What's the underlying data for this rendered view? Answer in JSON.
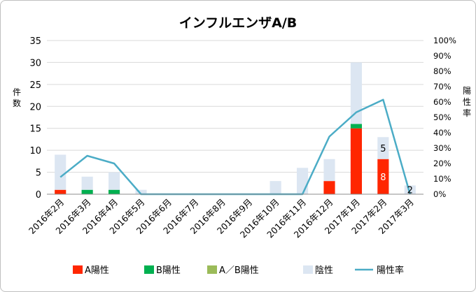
{
  "chart_data": {
    "type": "bar",
    "title": "インフルエンザA/B",
    "ylabel": "件数",
    "y2label": "陽性率",
    "ylim": [
      0,
      35
    ],
    "y2lim": [
      0,
      100
    ],
    "yticks": [
      "0",
      "5",
      "10",
      "15",
      "20",
      "25",
      "30",
      "35"
    ],
    "y2ticks": [
      "0%",
      "10%",
      "20%",
      "30%",
      "40%",
      "50%",
      "60%",
      "70%",
      "80%",
      "90%",
      "100%"
    ],
    "categories": [
      "2016年2月",
      "2016年3月",
      "2016年4月",
      "2016年5月",
      "2016年6月",
      "2016年7月",
      "2016年8月",
      "2016年9月",
      "2016年10月",
      "2016年11月",
      "2016年12月",
      "2017年1月",
      "2017年2月",
      "2017年3月"
    ],
    "grid": true,
    "legend_position": "bottom",
    "series": [
      {
        "name": "A陽性",
        "kind": "bar",
        "color": "#ff2600",
        "values": [
          1,
          0,
          0,
          0,
          0,
          0,
          0,
          0,
          0,
          0,
          3,
          15,
          8,
          0
        ]
      },
      {
        "name": "B陽性",
        "kind": "bar",
        "color": "#00b050",
        "values": [
          0,
          1,
          1,
          0,
          0,
          0,
          0,
          0,
          0,
          0,
          0,
          1,
          0,
          0
        ]
      },
      {
        "name": "A／B陽性",
        "kind": "bar",
        "color": "#9bbb59",
        "values": [
          0,
          0,
          0,
          0,
          0,
          0,
          0,
          0,
          0,
          0,
          0,
          0,
          0,
          0
        ]
      },
      {
        "name": "陰性",
        "kind": "bar",
        "color": "#dce6f2",
        "values": [
          8,
          3,
          4,
          1,
          0,
          0,
          0,
          0,
          3,
          6,
          5,
          14,
          5,
          2
        ]
      },
      {
        "name": "陽性率",
        "kind": "line",
        "axis": "right",
        "color": "#4bacc6",
        "values": [
          11.1,
          25.0,
          20.0,
          0,
          0,
          0,
          0,
          0,
          0,
          0,
          37.5,
          53.3,
          61.5,
          0
        ]
      }
    ],
    "data_labels": [
      {
        "category": "2017年2月",
        "series": "A陽性",
        "text": "8",
        "color": "#ffffff"
      },
      {
        "category": "2017年2月",
        "series": "陰性",
        "text": "5",
        "color": "#000000"
      },
      {
        "category": "2017年3月",
        "series": "陰性",
        "text": "2",
        "color": "#000000"
      }
    ]
  }
}
